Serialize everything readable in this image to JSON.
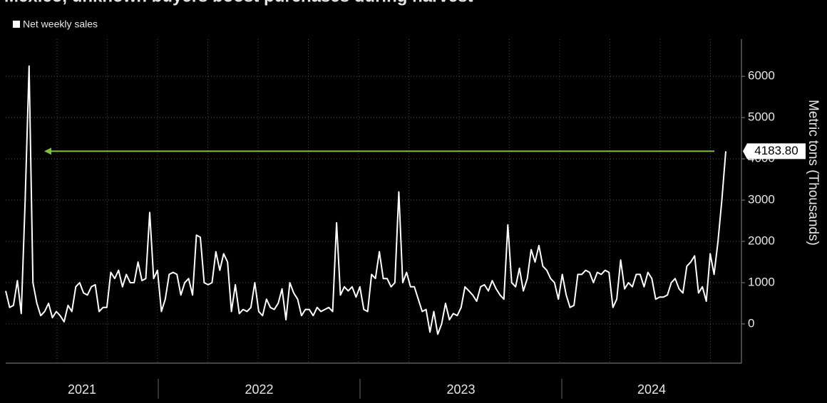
{
  "chart_data": {
    "type": "line",
    "title": "Mexico, unknown buyers boost purchases during harvest",
    "series": [
      {
        "name": "Net weekly sales",
        "color": "#ffffff",
        "values": [
          800,
          400,
          450,
          1050,
          250,
          3000,
          6250,
          1000,
          500,
          200,
          300,
          500,
          150,
          300,
          200,
          50,
          450,
          300,
          900,
          1000,
          750,
          700,
          900,
          950,
          300,
          400,
          400,
          1250,
          1100,
          1300,
          900,
          1200,
          1000,
          1000,
          1500,
          1050,
          1100,
          2700,
          1100,
          1300,
          300,
          600,
          1200,
          1250,
          1200,
          700,
          1000,
          1100,
          700,
          2150,
          2100,
          1000,
          950,
          1000,
          1750,
          1300,
          1700,
          1500,
          300,
          950,
          250,
          350,
          300,
          400,
          1000,
          300,
          200,
          600,
          400,
          350,
          500,
          850,
          100,
          1000,
          750,
          600,
          200,
          350,
          350,
          200,
          400,
          300,
          350,
          400,
          300,
          2450,
          700,
          900,
          800,
          900,
          650,
          900,
          350,
          300,
          1200,
          1100,
          1750,
          1100,
          1100,
          900,
          1000,
          3200,
          1000,
          1250,
          900,
          900,
          600,
          300,
          350,
          -200,
          300,
          -250,
          0,
          500,
          100,
          250,
          200,
          400,
          900,
          800,
          700,
          550,
          900,
          950,
          800,
          1050,
          850,
          700,
          600,
          2400,
          1000,
          900,
          1350,
          800,
          1100,
          1800,
          1500,
          1900,
          1400,
          1300,
          1100,
          1000,
          600,
          1200,
          700,
          400,
          450,
          1200,
          1200,
          1300,
          1250,
          1000,
          1250,
          1200,
          1300,
          1250,
          400,
          600,
          1550,
          850,
          1000,
          900,
          1200,
          1200,
          900,
          1250,
          1100,
          600,
          650,
          650,
          700,
          1000,
          1100,
          850,
          750,
          1400,
          1500,
          1650,
          750,
          900,
          550,
          1700,
          1200,
          2000,
          3000,
          4183.8
        ]
      }
    ],
    "x_labels": [
      "2021",
      "2022",
      "2023",
      "2024"
    ],
    "y_label": "Metric tons (Thousands)",
    "ylim": [
      -950,
      6900
    ],
    "yticks": [
      0,
      1000,
      2000,
      3000,
      4000,
      5000,
      6000
    ],
    "grid": true,
    "annotation": {
      "value": 4183.8,
      "label": "4183.80",
      "color": "#7fc241"
    }
  }
}
